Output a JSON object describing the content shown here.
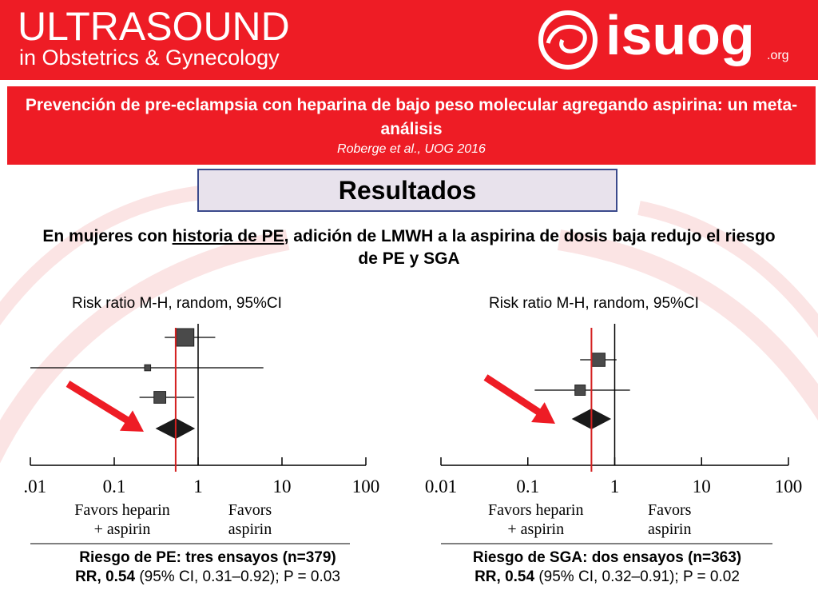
{
  "header": {
    "brand_title": "ULTRASOUND",
    "brand_subtitle": "in Obstetrics & Gynecology",
    "logo_text": "isuog",
    "logo_suffix": ".org"
  },
  "title": {
    "main": "Prevención de pre-eclampsia con heparina de bajo peso molecular agregando aspirina: un meta-análisis",
    "citation": "Roberge et al., UOG 2016"
  },
  "section_label": "Resultados",
  "statement": {
    "prefix": "En mujeres con ",
    "underlined": "historia de PE",
    "suffix": ",  adición de LMWH a la aspirina de dosis baja redujo el riesgo de PE y SGA"
  },
  "colors": {
    "brand_red": "#ee1c25",
    "marker": "#4a4a4a",
    "ref_line": "#d42020",
    "arrow": "#ee1c25"
  },
  "chart_data": [
    {
      "type": "forest",
      "title": "Risk ratio M-H, random, 95%CI",
      "x_scale": "log",
      "ticks": [
        "0.01",
        "0.1",
        "1",
        "10",
        "100"
      ],
      "xlim": [
        0.01,
        100
      ],
      "favors_left": [
        "Favors heparin",
        "+ aspirin"
      ],
      "favors_right": [
        "Favors",
        "aspirin"
      ],
      "studies": [
        {
          "rr": 0.7,
          "lo": 0.4,
          "hi": 1.6,
          "weight": 1.0
        },
        {
          "rr": 0.25,
          "lo": 0.01,
          "hi": 6.0,
          "weight": 0.2
        },
        {
          "rr": 0.35,
          "lo": 0.2,
          "hi": 0.9,
          "weight": 0.6
        }
      ],
      "pooled": {
        "rr": 0.54,
        "lo": 0.31,
        "hi": 0.92
      },
      "ref_line": 0.54,
      "caption_line1": "Riesgo de PE: tres ensayos (n=379)",
      "caption_line2_bold": "RR, 0.54",
      "caption_line2_rest": " (95% CI, 0.31–0.92); P = 0.03"
    },
    {
      "type": "forest",
      "title": "Risk ratio M-H, random, 95%CI",
      "x_scale": "log",
      "ticks": [
        "0.01",
        "0.1",
        "1",
        "10",
        "100"
      ],
      "xlim": [
        0.01,
        100
      ],
      "favors_left": [
        "Favors heparin",
        "+ aspirin"
      ],
      "favors_right": [
        "Favors",
        "aspirin"
      ],
      "studies": [
        {
          "rr": 0.65,
          "lo": 0.4,
          "hi": 1.05,
          "weight": 0.7
        },
        {
          "rr": 0.4,
          "lo": 0.12,
          "hi": 1.5,
          "weight": 0.5
        }
      ],
      "pooled": {
        "rr": 0.54,
        "lo": 0.32,
        "hi": 0.91
      },
      "ref_line": 0.54,
      "caption_line1": "Riesgo de SGA: dos ensayos (n=363)",
      "caption_line2_bold": "RR, 0.54",
      "caption_line2_rest": " (95% CI, 0.32–0.91); P = 0.02"
    }
  ]
}
